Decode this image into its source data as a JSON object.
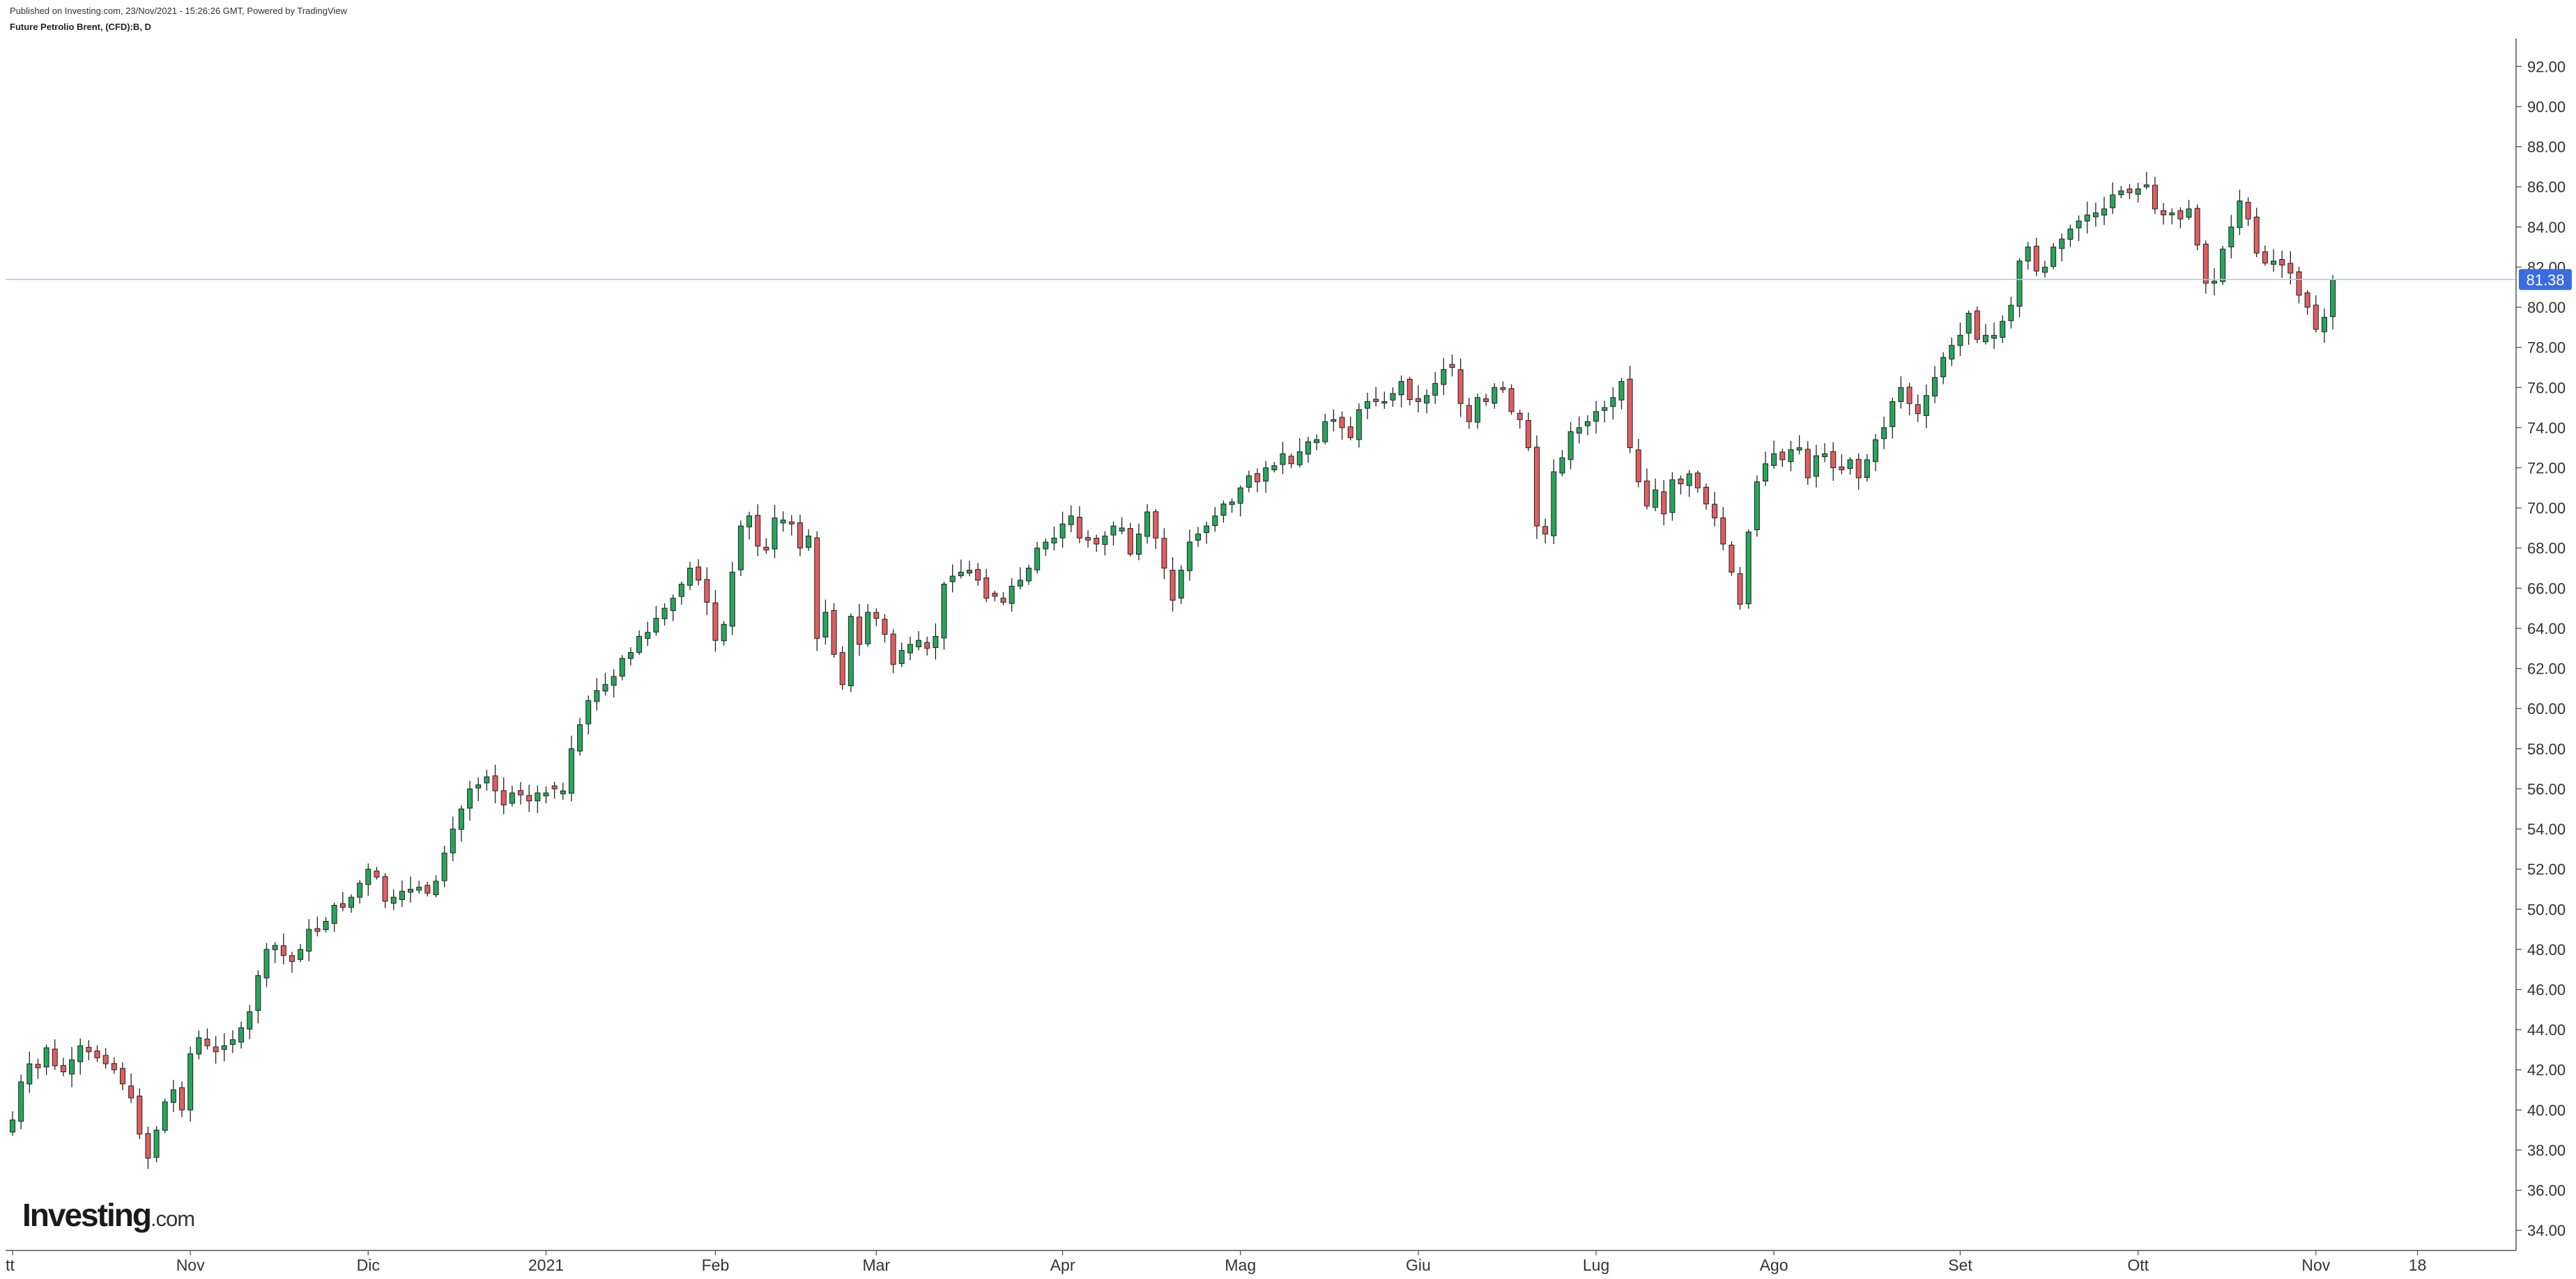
{
  "header": {
    "published": "Published on Investing.com, 23/Nov/2021 - 15:26:26 GMT, Powered by TradingView",
    "symbol": "Future Petrolio Brent, (CFD):B, D"
  },
  "brand": {
    "name": "Investing",
    "suffix": ".com"
  },
  "colors": {
    "up": "#26a65b",
    "down": "#e05e5e",
    "wick": "#222222",
    "axis": "#555555",
    "price_line": "#b9c4de",
    "price_label_bg": "#3a6be0"
  },
  "chart_data": {
    "type": "candlestick",
    "title": "Future Petrolio Brent, (CFD):B, D",
    "ylim": [
      33,
      93.4
    ],
    "yticks": [
      "34.00",
      "36.00",
      "38.00",
      "40.00",
      "42.00",
      "44.00",
      "46.00",
      "48.00",
      "50.00",
      "52.00",
      "54.00",
      "56.00",
      "58.00",
      "60.00",
      "62.00",
      "64.00",
      "66.00",
      "68.00",
      "70.00",
      "72.00",
      "74.00",
      "76.00",
      "78.00",
      "80.00",
      "82.00",
      "84.00",
      "86.00",
      "88.00",
      "90.00",
      "92.00"
    ],
    "xticks": [
      {
        "label": "tt",
        "i": 0
      },
      {
        "label": "Nov",
        "i": 21
      },
      {
        "label": "Dic",
        "i": 42
      },
      {
        "label": "2021",
        "i": 63
      },
      {
        "label": "Feb",
        "i": 83
      },
      {
        "label": "Mar",
        "i": 102
      },
      {
        "label": "Apr",
        "i": 124
      },
      {
        "label": "Mag",
        "i": 145
      },
      {
        "label": "Giu",
        "i": 166
      },
      {
        "label": "Lug",
        "i": 187
      },
      {
        "label": "Ago",
        "i": 208
      },
      {
        "label": "Set",
        "i": 230
      },
      {
        "label": "Ott",
        "i": 251
      },
      {
        "label": "Nov",
        "i": 272
      },
      {
        "label": "18",
        "i": 284
      }
    ],
    "last_price": 81.38,
    "last_price_label": "81.38",
    "closes": [
      39.5,
      41.4,
      42.3,
      42.1,
      43.1,
      42.2,
      41.9,
      42.5,
      43.2,
      42.9,
      42.6,
      42.3,
      42.0,
      41.3,
      40.6,
      38.8,
      37.6,
      39.0,
      40.4,
      41.0,
      40.0,
      42.8,
      43.6,
      43.2,
      42.9,
      43.2,
      43.5,
      44.1,
      44.9,
      46.7,
      48.0,
      48.2,
      47.7,
      47.4,
      48.0,
      49.0,
      48.9,
      49.4,
      50.2,
      50.1,
      50.6,
      51.3,
      52.0,
      51.6,
      50.4,
      50.6,
      50.9,
      51.0,
      51.1,
      50.8,
      51.4,
      52.8,
      54.0,
      55.0,
      56.0,
      56.2,
      56.6,
      55.9,
      55.2,
      55.8,
      55.7,
      55.4,
      55.8,
      55.8,
      56.0,
      55.9,
      58.0,
      59.2,
      60.4,
      60.9,
      61.2,
      61.6,
      62.5,
      62.8,
      63.6,
      63.8,
      64.5,
      65.0,
      65.5,
      66.2,
      67.0,
      66.4,
      65.3,
      63.4,
      64.2,
      66.8,
      69.1,
      69.6,
      68.1,
      67.9,
      69.5,
      69.4,
      69.2,
      68.0,
      68.6,
      63.5,
      64.8,
      62.7,
      61.2,
      64.6,
      63.2,
      64.8,
      64.5,
      63.7,
      62.2,
      62.9,
      63.2,
      63.4,
      63.0,
      63.6,
      66.2,
      66.6,
      66.8,
      66.9,
      66.4,
      65.5,
      65.6,
      65.3,
      66.1,
      66.4,
      67.0,
      68.0,
      68.3,
      68.5,
      69.2,
      69.6,
      68.5,
      68.4,
      68.2,
      68.6,
      69.1,
      69.0,
      67.7,
      68.7,
      69.8,
      68.5,
      67.0,
      65.4,
      66.9,
      68.3,
      68.7,
      69.1,
      69.6,
      70.2,
      70.3,
      71.0,
      71.6,
      71.3,
      72.0,
      72.1,
      72.7,
      72.2,
      72.8,
      73.3,
      73.4,
      74.3,
      74.4,
      74.0,
      73.5,
      74.9,
      75.3,
      75.3,
      75.3,
      75.7,
      76.3,
      75.4,
      75.3,
      75.6,
      76.2,
      76.9,
      77.0,
      75.2,
      74.3,
      75.5,
      75.3,
      76.0,
      75.9,
      74.8,
      74.4,
      73.0,
      69.1,
      68.7,
      71.8,
      72.5,
      73.8,
      74.0,
      74.3,
      74.8,
      75.0,
      75.5,
      76.3,
      73.0,
      71.3,
      70.1,
      70.9,
      69.7,
      71.4,
      71.2,
      71.7,
      71.0,
      70.2,
      69.5,
      68.2,
      66.8,
      65.2,
      68.8,
      71.3,
      72.2,
      72.7,
      72.4,
      72.9,
      73.0,
      71.5,
      72.6,
      72.7,
      72.0,
      71.9,
      72.4,
      71.5,
      72.4,
      73.4,
      74.0,
      75.3,
      76.0,
      75.2,
      74.7,
      75.6,
      76.5,
      77.5,
      78.1,
      78.6,
      79.7,
      78.4,
      78.6,
      78.6,
      79.3,
      80.1,
      82.3,
      83.0,
      81.8,
      82.0,
      83.0,
      83.4,
      83.9,
      84.3,
      84.6,
      84.7,
      84.9,
      85.6,
      85.8,
      85.7,
      85.9,
      86.1,
      84.9,
      84.6,
      84.7,
      84.4,
      84.9,
      83.1,
      81.2,
      81.3,
      82.9,
      84.0,
      85.3,
      84.4,
      82.7,
      82.2,
      82.3,
      82.1,
      81.7,
      80.6,
      80.0,
      78.9,
      79.5,
      81.38
    ]
  }
}
